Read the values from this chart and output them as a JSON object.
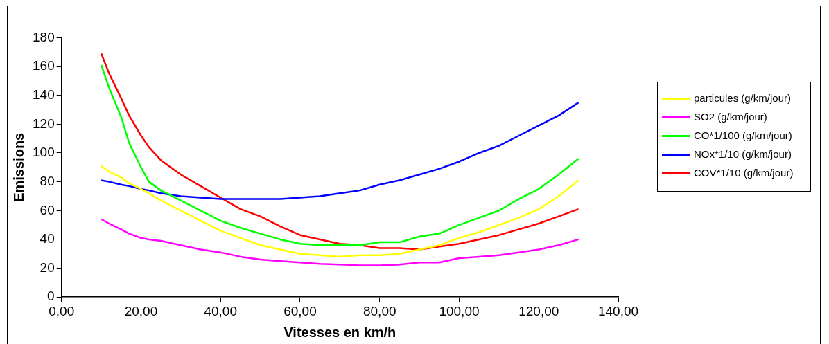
{
  "chart_data": {
    "type": "line",
    "xlabel": "Vitesses en km/h",
    "ylabel": "Emissions",
    "x": [
      10,
      12,
      15,
      17,
      20,
      22,
      25,
      30,
      35,
      40,
      45,
      50,
      55,
      60,
      65,
      70,
      75,
      80,
      85,
      90,
      95,
      100,
      105,
      110,
      115,
      120,
      125,
      130
    ],
    "series": [
      {
        "name": "particules (g/km/jour)",
        "color": "#ffff00",
        "values": [
          91,
          87,
          83,
          79,
          75,
          72,
          67,
          60,
          53,
          46,
          41,
          36,
          33,
          30,
          29,
          28,
          29,
          29,
          30,
          33,
          36,
          41,
          45,
          50,
          55,
          61,
          70,
          81
        ]
      },
      {
        "name": "SO2 (g/km/jour)",
        "color": "#ff00ff",
        "values": [
          54,
          51,
          47,
          44,
          41,
          40,
          39,
          36,
          33,
          31,
          28,
          26,
          25,
          24,
          23,
          22.5,
          22,
          22,
          22.5,
          24,
          24,
          27,
          28,
          29,
          31,
          33,
          36,
          40
        ]
      },
      {
        "name": "CO*1/100 (g/km/jour)",
        "color": "#00ff00",
        "values": [
          161,
          145,
          125,
          107,
          90,
          80,
          74,
          67,
          60,
          53,
          48,
          44,
          40,
          37,
          36,
          36,
          36,
          38,
          38,
          42,
          44,
          50,
          55,
          60,
          68,
          75,
          85,
          96
        ]
      },
      {
        "name": "NOx*1/10 (g/km/jour)",
        "color": "#0000ff",
        "values": [
          81,
          80,
          78,
          77,
          75,
          74,
          72,
          70,
          69,
          68,
          68,
          68,
          68,
          69,
          70,
          72,
          74,
          78,
          81,
          85,
          89,
          94,
          100,
          105,
          112,
          119,
          126,
          135
        ]
      },
      {
        "name": "COV*1/10 (g/km/jour)",
        "color": "#ff0000",
        "values": [
          169,
          155,
          138,
          126,
          112,
          104,
          95,
          85,
          77,
          69,
          61,
          56,
          49,
          43,
          40,
          37,
          36,
          34,
          34,
          33,
          35,
          37,
          40,
          43,
          47,
          51,
          56,
          61
        ]
      }
    ],
    "xlim": [
      0,
      140
    ],
    "xticks": [
      {
        "value": 0,
        "label": "0,00"
      },
      {
        "value": 20,
        "label": "20,00"
      },
      {
        "value": 40,
        "label": "40,00"
      },
      {
        "value": 60,
        "label": "60,00"
      },
      {
        "value": 80,
        "label": "80,00"
      },
      {
        "value": 100,
        "label": "100,00"
      },
      {
        "value": 120,
        "label": "120,00"
      },
      {
        "value": 140,
        "label": "140,00"
      }
    ],
    "ylim": [
      0,
      180
    ],
    "yticks": [
      0,
      20,
      40,
      60,
      80,
      100,
      120,
      140,
      160,
      180
    ],
    "grid": false,
    "legend": "right",
    "marker": "none",
    "line_style": "solid"
  }
}
